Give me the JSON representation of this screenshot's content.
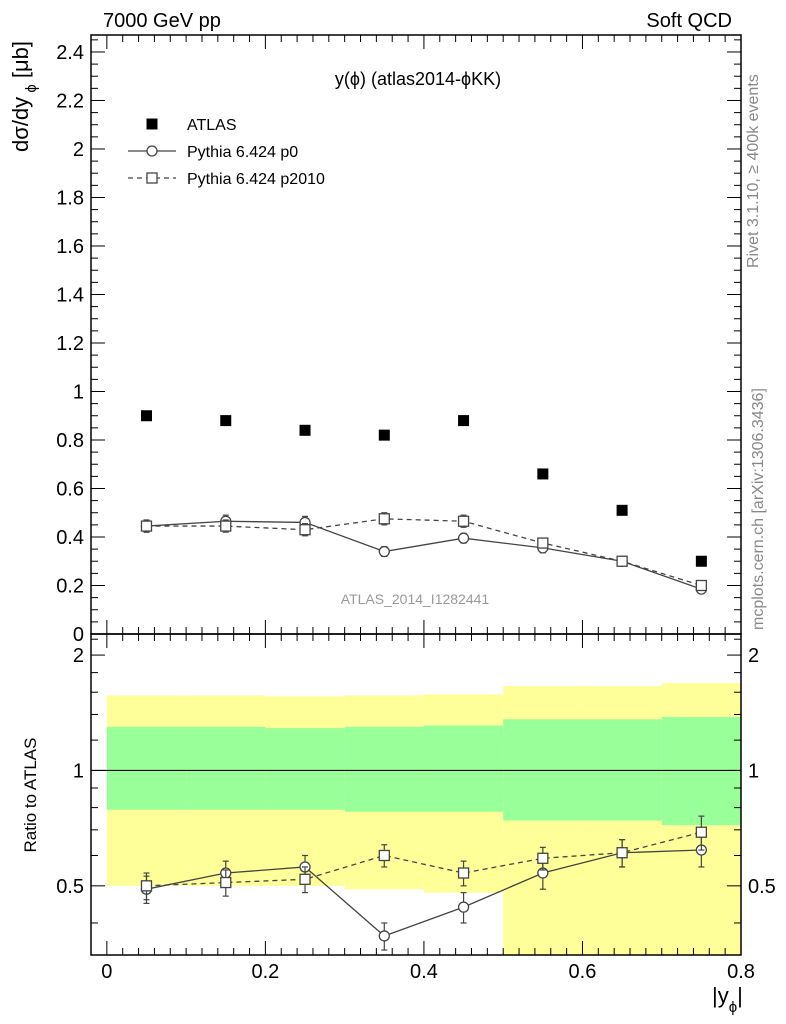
{
  "header": {
    "left": "7000 GeV pp",
    "right": "Soft QCD"
  },
  "side_text": {
    "top": "Rivet 3.1.10, ≥ 400k events",
    "bottom": "mcplots.cern.ch [arXiv:1306.3436]"
  },
  "chart_data": {
    "type": "scatter",
    "title": "y(ϕ) (atlas2014-ϕKK)",
    "watermark": "ATLAS_2014_I1282441",
    "xlabel": "|y",
    "xlabel_sub": "ϕ",
    "xlabel_close": "|",
    "ylabel": "dσ/dy",
    "ylabel_sub": "ϕ",
    "ylabel_unit": "[μb]",
    "ratio_ylabel": "Ratio to ATLAS",
    "xlim": [
      -0.02,
      0.8
    ],
    "ylim": [
      0,
      2.47
    ],
    "ratio_ylim": [
      0.33,
      2.27
    ],
    "x_ticks": [
      "0",
      "0.2",
      "0.4",
      "0.6",
      "0.8"
    ],
    "y_ticks": [
      "0",
      "0.2",
      "0.4",
      "0.6",
      "0.8",
      "1",
      "1.2",
      "1.4",
      "1.6",
      "1.8",
      "2",
      "2.2",
      "2.4"
    ],
    "ratio_ticks": [
      "0.5",
      "1",
      "2"
    ],
    "legend_position": "top-left",
    "x": [
      0.05,
      0.15,
      0.25,
      0.35,
      0.45,
      0.55,
      0.65,
      0.75
    ],
    "series": [
      {
        "name": "ATLAS",
        "values": [
          0.9,
          0.88,
          0.84,
          0.82,
          0.88,
          0.66,
          0.51,
          0.3
        ],
        "errors": [
          0.0,
          0.0,
          0.0,
          0.0,
          0.0,
          0.0,
          0.0,
          0.0
        ],
        "marker": "filled-square",
        "line": "none",
        "color": "#000000"
      },
      {
        "name": "Pythia 6.424 p0",
        "values": [
          0.445,
          0.465,
          0.46,
          0.34,
          0.395,
          0.355,
          0.3,
          0.185
        ],
        "errors": [
          0.025,
          0.025,
          0.025,
          0.02,
          0.02,
          0.02,
          0.015,
          0.012
        ],
        "ratio": [
          0.49,
          0.54,
          0.56,
          0.37,
          0.44,
          0.54,
          0.61,
          0.62
        ],
        "ratio_errors": [
          0.04,
          0.04,
          0.04,
          0.03,
          0.04,
          0.05,
          0.05,
          0.06
        ],
        "marker": "open-circle",
        "line": "solid",
        "color": "#444444"
      },
      {
        "name": "Pythia 6.424 p2010",
        "values": [
          0.445,
          0.445,
          0.43,
          0.475,
          0.465,
          0.375,
          0.3,
          0.2
        ],
        "errors": [
          0.025,
          0.025,
          0.025,
          0.025,
          0.025,
          0.02,
          0.015,
          0.012
        ],
        "ratio": [
          0.5,
          0.51,
          0.52,
          0.6,
          0.54,
          0.59,
          0.61,
          0.69
        ],
        "ratio_errors": [
          0.04,
          0.04,
          0.04,
          0.04,
          0.04,
          0.04,
          0.05,
          0.07
        ],
        "marker": "open-square",
        "line": "dashed",
        "color": "#444444"
      }
    ],
    "uncertainty_bands": {
      "bins": [
        [
          0.0,
          0.1
        ],
        [
          0.1,
          0.2
        ],
        [
          0.2,
          0.3
        ],
        [
          0.3,
          0.4
        ],
        [
          0.4,
          0.5
        ],
        [
          0.5,
          0.6
        ],
        [
          0.6,
          0.7
        ],
        [
          0.7,
          0.8
        ]
      ],
      "inner": [
        [
          0.79,
          1.3
        ],
        [
          0.79,
          1.3
        ],
        [
          0.79,
          1.29
        ],
        [
          0.78,
          1.3
        ],
        [
          0.78,
          1.31
        ],
        [
          0.74,
          1.36
        ],
        [
          0.74,
          1.36
        ],
        [
          0.72,
          1.38
        ]
      ],
      "outer": [
        [
          0.5,
          1.57
        ],
        [
          0.5,
          1.57
        ],
        [
          0.5,
          1.56
        ],
        [
          0.49,
          1.57
        ],
        [
          0.48,
          1.58
        ],
        [
          0.3,
          1.66
        ],
        [
          0.3,
          1.66
        ],
        [
          0.3,
          1.69
        ]
      ],
      "inner_color": "#99ff99",
      "outer_color": "#ffff99"
    }
  }
}
